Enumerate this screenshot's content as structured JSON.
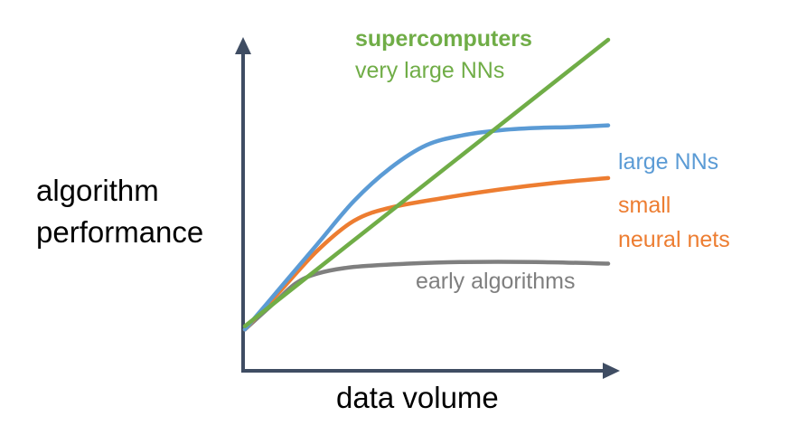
{
  "chart_data": {
    "type": "line",
    "title": "",
    "xlabel": "data volume",
    "ylabel": [
      "algorithm",
      "performance"
    ],
    "axis_tick_labels": "none",
    "grid": false,
    "legend": "none (series labelled directly at line ends)",
    "xlim": [
      0,
      100
    ],
    "ylim": [
      0,
      100
    ],
    "series": [
      {
        "key": "early",
        "labels": [
          "early algorithms"
        ],
        "color": "#7f7f7f",
        "x": [
          0,
          8,
          14,
          20,
          30,
          45,
          60,
          80,
          100
        ],
        "y": [
          12,
          20,
          26,
          29,
          31,
          32,
          32.5,
          32.5,
          32
        ]
      },
      {
        "key": "small",
        "labels": [
          "small",
          "neural nets"
        ],
        "color": "#ed7d31",
        "x": [
          0,
          10,
          20,
          30,
          40,
          55,
          70,
          85,
          100
        ],
        "y": [
          12,
          24,
          36,
          45,
          49,
          52,
          54.5,
          56.5,
          58
        ]
      },
      {
        "key": "large",
        "labels": [
          "large NNs"
        ],
        "color": "#5b9bd5",
        "x": [
          0,
          10,
          20,
          30,
          40,
          50,
          60,
          70,
          80,
          90,
          100
        ],
        "y": [
          12,
          25,
          38,
          51,
          61,
          68,
          71,
          72.5,
          73.2,
          73.5,
          74
        ]
      },
      {
        "key": "super",
        "labels": [
          "supercomputers",
          "very large NNs"
        ],
        "label_bold": [
          true,
          false
        ],
        "color": "#70ad47",
        "x": [
          0,
          100
        ],
        "y": [
          13,
          100
        ]
      }
    ]
  }
}
